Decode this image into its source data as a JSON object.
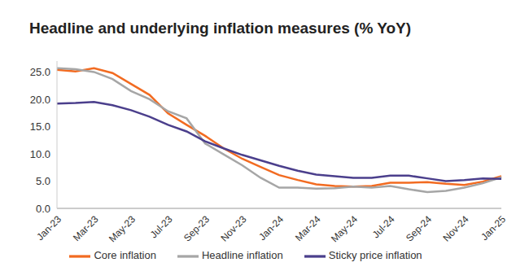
{
  "chart_data": {
    "type": "line",
    "title": "Headline and underlying inflation measures (% YoY)",
    "categories": [
      "Jan-23",
      null,
      "Mar-23",
      null,
      "May-23",
      null,
      "Jul-23",
      null,
      "Sep-23",
      null,
      "Nov-23",
      null,
      "Jan-24",
      null,
      "Mar-24",
      null,
      "May-24",
      null,
      "Jul-24",
      null,
      "Sep-24",
      null,
      "Nov-24",
      null,
      "Jan-25"
    ],
    "series": [
      {
        "name": "Core inflation",
        "color": "#f26b21",
        "values": [
          25.4,
          25.1,
          25.7,
          24.8,
          22.8,
          20.8,
          17.4,
          15.3,
          13.3,
          11.0,
          9.1,
          7.6,
          6.1,
          5.2,
          4.4,
          4.1,
          4.0,
          4.1,
          4.7,
          4.7,
          4.8,
          4.5,
          4.3,
          4.9,
          5.9
        ]
      },
      {
        "name": "Headline inflation",
        "color": "#a6a6a6",
        "values": [
          25.7,
          25.5,
          25.0,
          23.7,
          21.5,
          20.0,
          17.8,
          16.5,
          11.9,
          9.9,
          7.9,
          5.6,
          3.8,
          3.8,
          3.6,
          3.7,
          4.0,
          3.8,
          4.1,
          3.5,
          3.0,
          3.2,
          3.8,
          4.6,
          5.7
        ]
      },
      {
        "name": "Sticky price inflation",
        "color": "#4b3f8c",
        "values": [
          19.2,
          19.3,
          19.5,
          18.9,
          18.0,
          16.8,
          15.3,
          14.1,
          12.3,
          11.0,
          9.8,
          8.8,
          7.8,
          6.9,
          6.2,
          5.9,
          5.6,
          5.6,
          6.0,
          6.0,
          5.5,
          5.0,
          5.2,
          5.5,
          5.4
        ]
      }
    ],
    "ylim": [
      0,
      27
    ],
    "yticks": [
      {
        "value": 0,
        "label": "0.0"
      },
      {
        "value": 5,
        "label": "5.0"
      },
      {
        "value": 10,
        "label": "10.0"
      },
      {
        "value": 15,
        "label": "15.0"
      },
      {
        "value": 20,
        "label": "20.0"
      },
      {
        "value": 25,
        "label": "25.0"
      }
    ],
    "grid": false,
    "legend": "bottom"
  }
}
